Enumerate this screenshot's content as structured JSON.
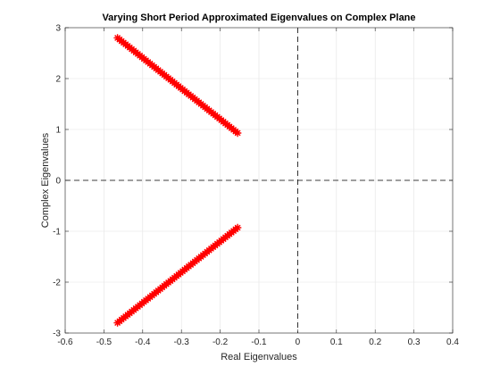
{
  "chart_data": {
    "type": "scatter",
    "title": "Varying Short Period Approximated Eigenvalues on Complex Plane",
    "xlabel": "Real Eigenvalues",
    "ylabel": "Complex Eigenvalues",
    "xlim": [
      -0.6,
      0.4
    ],
    "ylim": [
      -3,
      3
    ],
    "xticks": [
      "-0.6",
      "-0.5",
      "-0.4",
      "-0.3",
      "-0.2",
      "-0.1",
      "0",
      "0.1",
      "0.2",
      "0.3",
      "0.4"
    ],
    "yticks": [
      "-3",
      "-2",
      "-1",
      "0",
      "1",
      "2",
      "3"
    ],
    "grid": true,
    "marker": "*",
    "series": [
      {
        "color": "#ff0000",
        "x_range": [
          -0.465,
          -0.155
        ],
        "y_range": [
          2.8,
          0.93
        ],
        "points": 60
      },
      {
        "color": "#ff0000",
        "x_range": [
          -0.465,
          -0.155
        ],
        "y_range": [
          -2.8,
          -0.93
        ],
        "points": 60
      }
    ],
    "reference_lines": [
      {
        "orientation": "vertical",
        "value": 0,
        "style": "dashed",
        "color": "#000000"
      },
      {
        "orientation": "horizontal",
        "value": 0,
        "style": "dashed",
        "color": "#000000"
      }
    ]
  }
}
